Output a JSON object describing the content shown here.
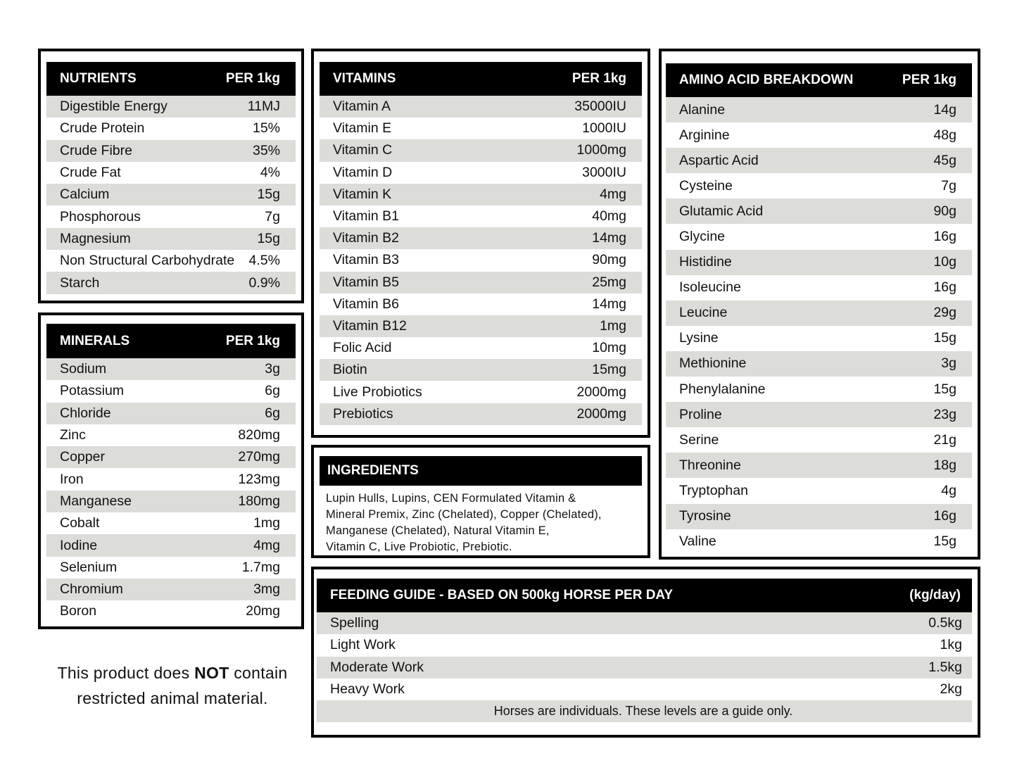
{
  "colors": {
    "header_bg": "#000000",
    "stripe": "#dcdcd8",
    "border": "#000000"
  },
  "nutrients": {
    "title": "NUTRIENTS",
    "unit": "PER 1kg",
    "rows": [
      {
        "name": "Digestible Energy",
        "value": "11MJ"
      },
      {
        "name": "Crude Protein",
        "value": "15%"
      },
      {
        "name": "Crude Fibre",
        "value": "35%"
      },
      {
        "name": "Crude Fat",
        "value": "4%"
      },
      {
        "name": "Calcium",
        "value": "15g"
      },
      {
        "name": "Phosphorous",
        "value": "7g"
      },
      {
        "name": "Magnesium",
        "value": "15g"
      },
      {
        "name": "Non Structural Carbohydrate",
        "value": "4.5%"
      },
      {
        "name": "Starch",
        "value": "0.9%"
      }
    ]
  },
  "minerals": {
    "title": "MINERALS",
    "unit": "PER 1kg",
    "rows": [
      {
        "name": "Sodium",
        "value": "3g"
      },
      {
        "name": "Potassium",
        "value": "6g"
      },
      {
        "name": "Chloride",
        "value": "6g"
      },
      {
        "name": "Zinc",
        "value": "820mg"
      },
      {
        "name": "Copper",
        "value": "270mg"
      },
      {
        "name": "Iron",
        "value": "123mg"
      },
      {
        "name": "Manganese",
        "value": "180mg"
      },
      {
        "name": "Cobalt",
        "value": "1mg"
      },
      {
        "name": "Iodine",
        "value": "4mg"
      },
      {
        "name": "Selenium",
        "value": "1.7mg"
      },
      {
        "name": "Chromium",
        "value": "3mg"
      },
      {
        "name": "Boron",
        "value": "20mg"
      }
    ]
  },
  "vitamins": {
    "title": "VITAMINS",
    "unit": "PER 1kg",
    "rows": [
      {
        "name": "Vitamin A",
        "value": "35000IU"
      },
      {
        "name": "Vitamin E",
        "value": "1000IU"
      },
      {
        "name": "Vitamin C",
        "value": "1000mg"
      },
      {
        "name": "Vitamin D",
        "value": "3000IU"
      },
      {
        "name": "Vitamin K",
        "value": "4mg"
      },
      {
        "name": "Vitamin B1",
        "value": "40mg"
      },
      {
        "name": "Vitamin B2",
        "value": "14mg"
      },
      {
        "name": "Vitamin B3",
        "value": "90mg"
      },
      {
        "name": "Vitamin B5",
        "value": "25mg"
      },
      {
        "name": "Vitamin B6",
        "value": "14mg"
      },
      {
        "name": "Vitamin B12",
        "value": "1mg"
      },
      {
        "name": "Folic Acid",
        "value": "10mg"
      },
      {
        "name": "Biotin",
        "value": "15mg"
      },
      {
        "name": "Live Probiotics",
        "value": "2000mg"
      },
      {
        "name": "Prebiotics",
        "value": "2000mg"
      }
    ]
  },
  "ingredients": {
    "title": "INGREDIENTS",
    "lines": [
      "Lupin Hulls, Lupins, CEN Formulated Vitamin &",
      "Mineral Premix, Zinc (Chelated), Copper (Chelated),",
      "Manganese (Chelated), Natural Vitamin E,",
      "Vitamin C, Live Probiotic, Prebiotic."
    ]
  },
  "amino": {
    "title": "AMINO ACID BREAKDOWN",
    "unit": "PER 1kg",
    "rows": [
      {
        "name": "Alanine",
        "value": "14g"
      },
      {
        "name": "Arginine",
        "value": "48g"
      },
      {
        "name": "Aspartic Acid",
        "value": "45g"
      },
      {
        "name": "Cysteine",
        "value": "7g"
      },
      {
        "name": "Glutamic Acid",
        "value": "90g"
      },
      {
        "name": "Glycine",
        "value": "16g"
      },
      {
        "name": "Histidine",
        "value": "10g"
      },
      {
        "name": "Isoleucine",
        "value": "16g"
      },
      {
        "name": "Leucine",
        "value": "29g"
      },
      {
        "name": "Lysine",
        "value": "15g"
      },
      {
        "name": "Methionine",
        "value": "3g"
      },
      {
        "name": "Phenylalanine",
        "value": "15g"
      },
      {
        "name": "Proline",
        "value": "23g"
      },
      {
        "name": "Serine",
        "value": "21g"
      },
      {
        "name": "Threonine",
        "value": "18g"
      },
      {
        "name": "Tryptophan",
        "value": "4g"
      },
      {
        "name": "Tyrosine",
        "value": "16g"
      },
      {
        "name": "Valine",
        "value": "15g"
      }
    ]
  },
  "feeding": {
    "title": "FEEDING GUIDE - BASED ON 500kg HORSE PER DAY",
    "unit": "(kg/day)",
    "rows": [
      {
        "name": "Spelling",
        "value": "0.5kg"
      },
      {
        "name": "Light Work",
        "value": "1kg"
      },
      {
        "name": "Moderate Work",
        "value": "1.5kg"
      },
      {
        "name": "Heavy Work",
        "value": "2kg"
      }
    ],
    "note": "Horses are individuals. These levels are a guide only."
  },
  "disclaimer": {
    "before": "This product does ",
    "bold": "NOT",
    "after": " contain",
    "line2": "restricted animal material."
  }
}
